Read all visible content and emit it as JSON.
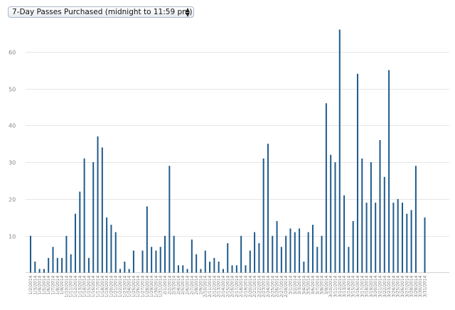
{
  "metric_select": {
    "selected": "7-Day Passes Purchased (midnight to 11:59 pm)"
  },
  "colors": {
    "bar": "#1f5a8c",
    "grid": "#e6e6e6",
    "axis": "#d2d2d2"
  },
  "chart_data": {
    "type": "bar",
    "title": "",
    "xlabel": "",
    "ylabel": "",
    "ylim": [
      0,
      75
    ],
    "yticks": [
      10,
      20,
      30,
      40,
      50,
      60
    ],
    "grid": true,
    "categories": [
      "1/2/2014",
      "1/3/2014",
      "1/4/2014",
      "1/5/2014",
      "1/6/2014",
      "1/7/2014",
      "1/8/2014",
      "1/9/2014",
      "1/10/2014",
      "1/11/2014",
      "1/12/2014",
      "1/13/2014",
      "1/14/2014",
      "1/15/2014",
      "1/16/2014",
      "1/17/2014",
      "1/18/2014",
      "1/19/2014",
      "1/20/2014",
      "1/21/2014",
      "1/22/2014",
      "1/23/2014",
      "1/24/2014",
      "1/25/2014",
      "1/26/2014",
      "1/27/2014",
      "1/28/2014",
      "1/29/2014",
      "1/30/2014",
      "1/31/2014",
      "2/1/2014",
      "2/2/2014",
      "2/3/2014",
      "2/4/2014",
      "2/5/2014",
      "2/6/2014",
      "2/7/2014",
      "2/8/2014",
      "2/9/2014",
      "2/10/2014",
      "2/11/2014",
      "2/12/2014",
      "2/13/2014",
      "2/14/2014",
      "2/15/2014",
      "2/16/2014",
      "2/17/2014",
      "2/18/2014",
      "2/19/2014",
      "2/20/2014",
      "2/21/2014",
      "2/22/2014",
      "2/23/2014",
      "2/24/2014",
      "2/25/2014",
      "2/26/2014",
      "2/27/2014",
      "2/28/2014",
      "3/1/2014",
      "3/2/2014",
      "3/3/2014",
      "3/4/2014",
      "3/5/2014",
      "3/6/2014",
      "3/7/2014",
      "3/8/2014",
      "3/9/2014",
      "3/10/2014",
      "3/11/2014",
      "3/12/2014",
      "3/13/2014",
      "3/14/2014",
      "3/15/2014",
      "3/16/2014",
      "3/17/2014",
      "3/18/2014",
      "3/19/2014",
      "3/20/2014",
      "3/21/2014",
      "3/22/2014",
      "3/23/2014",
      "3/24/2014",
      "3/25/2014",
      "3/26/2014",
      "3/27/2014",
      "3/28/2014",
      "3/29/2014",
      "3/30/2014",
      "3/31/2014"
    ],
    "values": [
      10,
      3,
      1,
      1,
      4,
      7,
      4,
      4,
      10,
      5,
      16,
      22,
      31,
      4,
      30,
      37,
      34,
      15,
      13,
      11,
      1,
      3,
      1,
      6,
      0,
      6,
      18,
      7,
      6,
      7,
      10,
      29,
      10,
      2,
      2,
      1,
      9,
      5,
      1,
      6,
      3,
      4,
      3,
      1,
      8,
      2,
      2,
      10,
      2,
      6,
      11,
      8,
      31,
      35,
      10,
      14,
      7,
      10,
      12,
      11,
      12,
      3,
      11,
      13,
      7,
      10,
      46,
      32,
      30,
      66,
      21,
      7,
      14,
      54,
      31,
      19,
      30,
      19,
      36,
      26,
      55,
      19,
      20,
      19,
      16,
      17,
      29,
      0,
      15
    ]
  }
}
